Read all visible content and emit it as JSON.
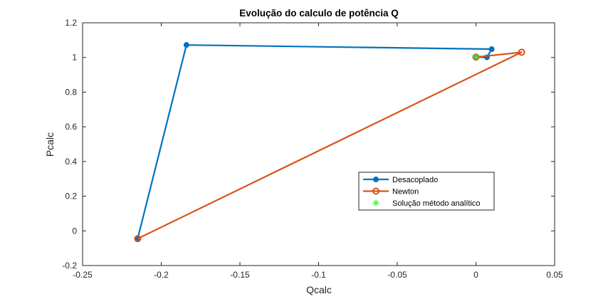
{
  "chart_data": {
    "type": "line",
    "title": "Evolução do calculo de potência Q",
    "xlabel": "Qcalc",
    "ylabel": "Pcalc",
    "xlim": [
      -0.25,
      0.05
    ],
    "ylim": [
      -0.2,
      1.2
    ],
    "xticks": [
      -0.25,
      -0.2,
      -0.15,
      -0.1,
      -0.05,
      0,
      0.05
    ],
    "xtick_labels": [
      "-0.25",
      "-0.2",
      "-0.15",
      "-0.1",
      "-0.05",
      "0",
      "0.05"
    ],
    "yticks": [
      -0.2,
      0,
      0.2,
      0.4,
      0.6,
      0.8,
      1,
      1.2
    ],
    "ytick_labels": [
      "-0.2",
      "0",
      "0.2",
      "0.4",
      "0.6",
      "0.8",
      "1",
      "1.2"
    ],
    "grid": false,
    "legend_position": "lower-right inside",
    "series": [
      {
        "name": "Desacoplado",
        "color": "#0072BD",
        "marker": "filled-circle",
        "x": [
          -0.215,
          -0.184,
          0.01,
          0.007,
          0.0
        ],
        "y": [
          -0.045,
          1.072,
          1.048,
          1.001,
          1.002
        ]
      },
      {
        "name": "Newton",
        "color": "#D95319",
        "marker": "open-circle",
        "x": [
          -0.215,
          0.029,
          0.0
        ],
        "y": [
          -0.045,
          1.03,
          1.002
        ]
      },
      {
        "name": "Solução método analítico",
        "color": "#33FF33",
        "marker": "asterisk",
        "x": [
          0.0
        ],
        "y": [
          1.002
        ]
      }
    ]
  }
}
